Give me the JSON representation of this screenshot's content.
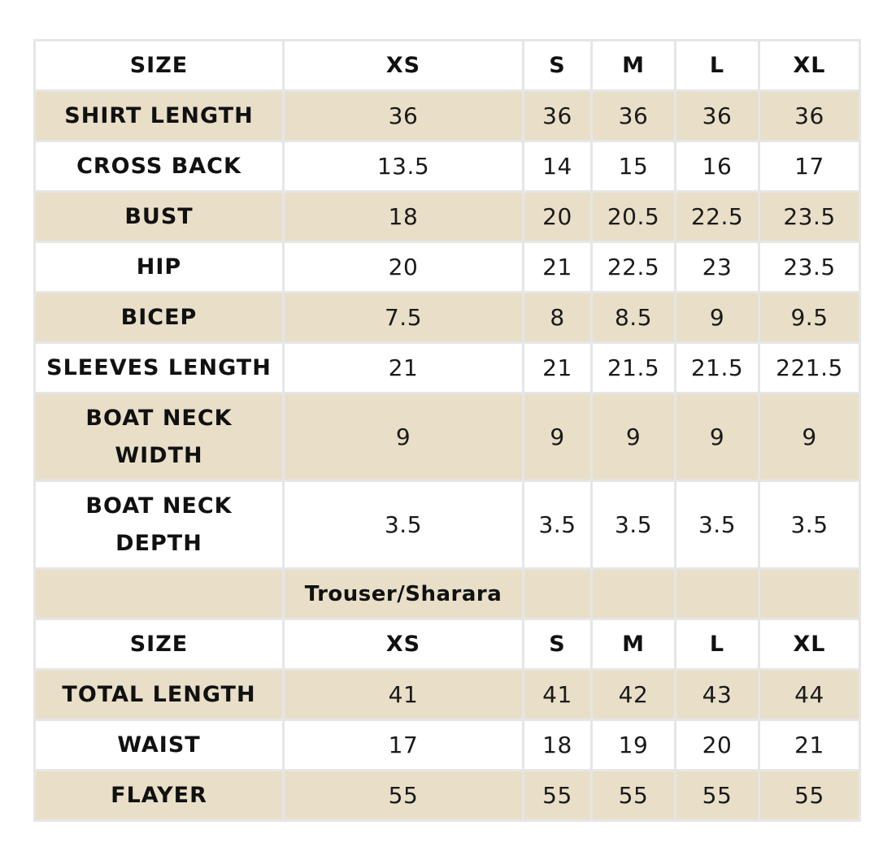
{
  "top_table": {
    "header": {
      "label": "SIZE",
      "sizes": [
        "XS",
        "S",
        "M",
        "L",
        "XL"
      ]
    },
    "rows": [
      {
        "label": "SHIRT LENGTH",
        "values": [
          "36",
          "36",
          "36",
          "36",
          "36"
        ]
      },
      {
        "label": "CROSS BACK",
        "values": [
          "13.5",
          "14",
          "15",
          "16",
          "17"
        ]
      },
      {
        "label": "BUST",
        "values": [
          "18",
          "20",
          "20.5",
          "22.5",
          "23.5"
        ]
      },
      {
        "label": "HIP",
        "values": [
          "20",
          "21",
          "22.5",
          "23",
          "23.5"
        ]
      },
      {
        "label": "BICEP",
        "values": [
          "7.5",
          "8",
          "8.5",
          "9",
          "9.5"
        ]
      },
      {
        "label": "SLEEVES LENGTH",
        "values": [
          "21",
          "21",
          "21.5",
          "21.5",
          "221.5"
        ]
      },
      {
        "label_line1": "BOAT NECK",
        "label_line2": "WIDTH",
        "values": [
          "9",
          "9",
          "9",
          "9",
          "9"
        ]
      },
      {
        "label_line1": "BOAT NECK",
        "label_line2": "DEPTH",
        "values": [
          "3.5",
          "3.5",
          "3.5",
          "3.5",
          "3.5"
        ]
      }
    ]
  },
  "section_title": "Trouser/Sharara",
  "bottom_table": {
    "header": {
      "label": "SIZE",
      "sizes": [
        "XS",
        "S",
        "M",
        "L",
        "XL"
      ]
    },
    "rows": [
      {
        "label": "TOTAL LENGTH",
        "values": [
          "41",
          "41",
          "42",
          "43",
          "44"
        ]
      },
      {
        "label": "WAIST",
        "values": [
          "17",
          "18",
          "19",
          "20",
          "21"
        ]
      },
      {
        "label": "FLAYER",
        "values": [
          "55",
          "55",
          "55",
          "55",
          "55"
        ]
      }
    ]
  },
  "colors": {
    "shaded_row": "#e9dfc8",
    "plain_row": "#ffffff",
    "grid_line": "#e6e6e6"
  }
}
